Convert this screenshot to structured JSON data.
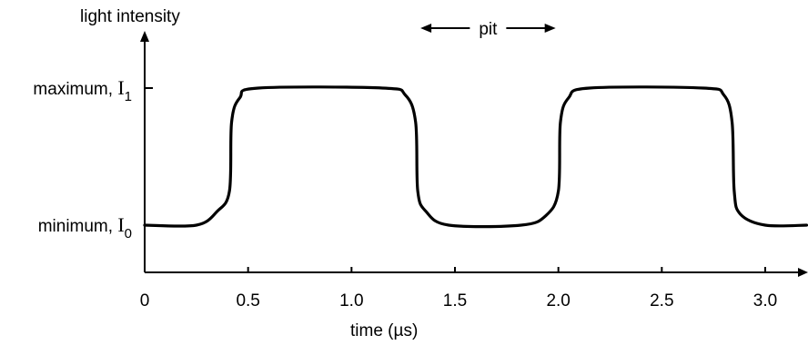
{
  "chart_data": {
    "type": "line",
    "ylabel": "light intensity",
    "xlabel": "time (µs)",
    "xlim": [
      0,
      3.2
    ],
    "ylim": [
      0,
      1
    ],
    "x_ticks": [
      0,
      0.5,
      1.0,
      1.5,
      2.0,
      2.5,
      3.0
    ],
    "x_tick_labels": [
      "0",
      "0.5",
      "1.0",
      "1.5",
      "2.0",
      "2.5",
      "3.0"
    ],
    "y_levels": [
      {
        "prefix": "minimum, ",
        "symbol": "I",
        "subscript": "0",
        "value": 0
      },
      {
        "prefix": "maximum, ",
        "symbol": "I",
        "subscript": "1",
        "value": 1
      }
    ],
    "grid": false,
    "annotation": {
      "text": "pit",
      "x_start": 1.32,
      "x_end": 2.0
    },
    "series": [
      {
        "x": [
          0.0,
          0.25,
          0.35,
          0.41,
          0.42,
          0.46,
          0.55,
          1.15,
          1.26,
          1.31,
          1.32,
          1.36,
          1.47,
          1.82,
          1.94,
          2.0,
          2.01,
          2.05,
          2.15,
          2.7,
          2.8,
          2.84,
          2.85,
          2.88,
          3.0,
          3.2
        ],
        "y": [
          0.0,
          0.0,
          0.1,
          0.25,
          0.75,
          0.93,
          1.0,
          1.0,
          0.95,
          0.75,
          0.25,
          0.1,
          0.0,
          0.0,
          0.07,
          0.25,
          0.75,
          0.93,
          1.0,
          1.0,
          0.95,
          0.75,
          0.25,
          0.08,
          0.0,
          0.0
        ]
      }
    ]
  }
}
